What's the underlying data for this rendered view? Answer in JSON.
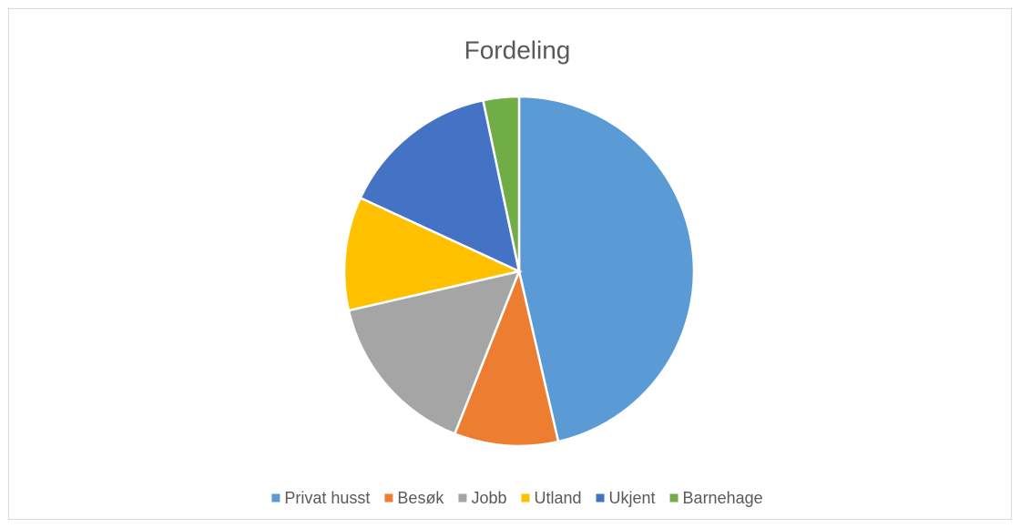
{
  "chart_data": {
    "type": "pie",
    "title": "Fordeling",
    "categories": [
      "Privat husst",
      "Besøk",
      "Jobb",
      "Utland",
      "Ukjent",
      "Barnehage"
    ],
    "values": [
      46.4,
      9.6,
      15.4,
      10.5,
      14.8,
      3.3
    ],
    "colors": [
      "#5b9bd5",
      "#ed7d31",
      "#a5a5a5",
      "#ffc000",
      "#4472c4",
      "#70ad47"
    ],
    "legend": "bottom"
  }
}
